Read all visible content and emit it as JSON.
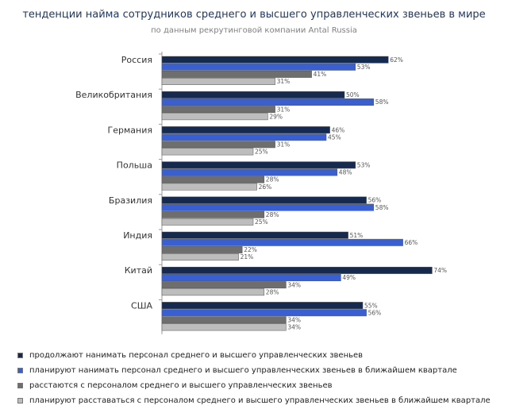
{
  "chart_data": {
    "type": "bar",
    "orientation": "horizontal",
    "title": "тенденции найма сотрудников среднего и высшего управленческих звеньев в мире",
    "subtitle": "по данным рекрутинговой компании Antal Russia",
    "categories": [
      "Россия",
      "Великобритания",
      "Германия",
      "Польша",
      "Бразилия",
      "Индия",
      "Китай",
      "США"
    ],
    "series": [
      {
        "name": "продолжают нанимать персонал среднего и высшего управленческих звеньев",
        "color": "#16294f",
        "values": [
          62,
          50,
          46,
          53,
          56,
          51,
          74,
          55
        ]
      },
      {
        "name": "планируют нанимать персонал среднего и высшего управленческих звеньев в ближайшем квартале",
        "color": "#3a5fd0",
        "values": [
          53,
          58,
          45,
          48,
          58,
          66,
          49,
          56
        ]
      },
      {
        "name": "расстаются с персоналом среднего и высшего управленческих звеньев",
        "color": "#6e6e6e",
        "values": [
          41,
          31,
          31,
          28,
          28,
          22,
          34,
          34
        ]
      },
      {
        "name": "планируют расставаться с персоналом среднего и высшего управленческих звеньев в ближайшем квартале",
        "color": "#bdbdbd",
        "values": [
          31,
          29,
          25,
          26,
          25,
          21,
          28,
          34
        ]
      }
    ],
    "value_suffix": "%",
    "xlim": [
      0,
      100
    ],
    "grid": false,
    "legend_position": "bottom"
  }
}
